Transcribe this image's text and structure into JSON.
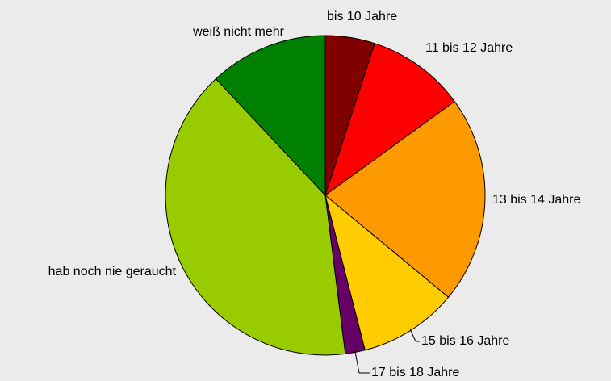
{
  "chart_data": {
    "type": "pie",
    "categories": [
      "bis 10 Jahre",
      "11 bis 12 Jahre",
      "13 bis 14 Jahre",
      "15 bis 16 Jahre",
      "17 bis 18 Jahre",
      "hab noch nie geraucht",
      "weiß nicht mehr"
    ],
    "values": [
      5,
      10,
      21,
      10,
      2,
      40,
      12
    ],
    "colors": [
      "#800000",
      "#ff0000",
      "#ff9900",
      "#ffcc00",
      "#660066",
      "#99cc00",
      "#008000"
    ]
  }
}
